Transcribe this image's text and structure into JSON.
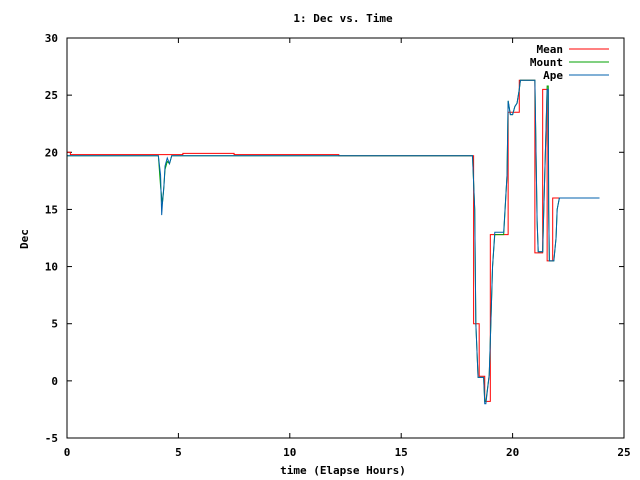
{
  "chart_data": {
    "type": "line",
    "title": "1: Dec vs. Time",
    "xlabel": "time (Elapse Hours)",
    "ylabel": "Dec",
    "xlim": [
      0,
      25
    ],
    "ylim": [
      -5,
      30
    ],
    "xticks": [
      0,
      5,
      10,
      15,
      20,
      25
    ],
    "yticks": [
      -5,
      0,
      5,
      10,
      15,
      20,
      25,
      30
    ],
    "grid": false,
    "legend_position": "top-right",
    "series": [
      {
        "name": "Mean",
        "color": "#ff0000",
        "x": [
          0,
          0.15,
          0.15,
          5.2,
          5.2,
          7.5,
          7.5,
          12.2,
          12.2,
          18.25,
          18.25,
          18.5,
          18.5,
          18.75,
          18.75,
          19.0,
          19.0,
          19.8,
          19.8,
          20.3,
          20.3,
          21.0,
          21.0,
          21.35,
          21.35,
          21.55,
          21.55,
          21.8,
          21.8,
          22.0,
          22.0,
          23.9
        ],
        "y": [
          20.0,
          20.0,
          19.8,
          19.8,
          19.9,
          19.9,
          19.8,
          19.8,
          19.7,
          19.7,
          5.0,
          5.0,
          0.4,
          0.4,
          -1.8,
          -1.8,
          12.8,
          12.8,
          23.5,
          23.5,
          26.3,
          26.3,
          11.2,
          11.2,
          25.5,
          25.5,
          10.5,
          10.5,
          16.0,
          16.0,
          16.0,
          16.0
        ]
      },
      {
        "name": "Mount",
        "color": "#00a000",
        "x": [
          0,
          4.1,
          4.2,
          4.28,
          4.33,
          4.4,
          4.5,
          4.6,
          4.7,
          5.2,
          18.2,
          18.3,
          18.35,
          18.45,
          18.7,
          18.75,
          18.8,
          18.95,
          19.0,
          19.1,
          19.2,
          19.4,
          19.6,
          19.75,
          19.8,
          19.9,
          20.0,
          20.1,
          20.2,
          20.3,
          20.35,
          20.6,
          20.7,
          20.8,
          20.9,
          21.0,
          21.1,
          21.15,
          21.2,
          21.35,
          21.4,
          21.5,
          21.55,
          21.6,
          21.62,
          21.65,
          21.8,
          21.85,
          21.95,
          22.0,
          22.1,
          23.9
        ],
        "y": [
          19.7,
          19.7,
          17.0,
          15.5,
          16.5,
          18.5,
          19.2,
          19.0,
          19.7,
          19.7,
          19.7,
          15.0,
          5.0,
          0.3,
          0.3,
          -1.8,
          -1.8,
          0.5,
          3.5,
          10.0,
          12.8,
          12.8,
          12.8,
          18.0,
          24.5,
          23.3,
          23.3,
          24.0,
          24.3,
          25.5,
          26.3,
          26.3,
          26.3,
          26.3,
          26.3,
          26.3,
          14.0,
          11.3,
          11.3,
          11.3,
          15.0,
          22.0,
          25.8,
          25.8,
          15.0,
          10.5,
          10.5,
          10.5,
          12.5,
          15.0,
          16.0,
          16.0
        ]
      },
      {
        "name": "Ape",
        "color": "#0060ad",
        "x": [
          0,
          4.1,
          4.2,
          4.25,
          4.3,
          4.35,
          4.4,
          4.5,
          4.6,
          4.7,
          5.2,
          18.2,
          18.3,
          18.35,
          18.45,
          18.7,
          18.75,
          18.8,
          18.95,
          19.0,
          19.1,
          19.2,
          19.4,
          19.6,
          19.75,
          19.8,
          19.9,
          20.0,
          20.1,
          20.2,
          20.3,
          20.35,
          20.6,
          20.7,
          20.8,
          20.9,
          21.0,
          21.1,
          21.15,
          21.2,
          21.35,
          21.4,
          21.5,
          21.55,
          21.6,
          21.62,
          21.65,
          21.8,
          21.85,
          21.95,
          22.0,
          22.1,
          23.9
        ],
        "y": [
          19.7,
          19.7,
          18.0,
          14.5,
          16.0,
          17.0,
          18.8,
          19.5,
          19.0,
          19.7,
          19.7,
          19.7,
          15.0,
          5.0,
          0.3,
          0.3,
          -2.0,
          -2.0,
          0.5,
          3.5,
          10.0,
          13.0,
          13.0,
          13.0,
          18.0,
          24.5,
          23.3,
          23.3,
          24.0,
          24.3,
          25.5,
          26.3,
          26.3,
          26.3,
          26.3,
          26.3,
          26.3,
          14.0,
          11.3,
          11.3,
          11.3,
          15.0,
          22.0,
          25.5,
          25.5,
          15.0,
          10.5,
          10.5,
          10.5,
          12.5,
          15.0,
          16.0,
          16.0
        ]
      }
    ]
  }
}
